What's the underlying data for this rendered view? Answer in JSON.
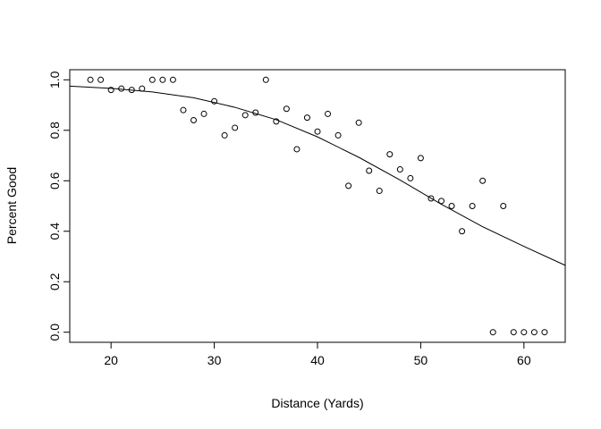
{
  "chart_data": {
    "type": "scatter",
    "title": "",
    "xlabel": "Distance (Yards)",
    "ylabel": "Percent Good",
    "xlim": [
      16,
      64
    ],
    "ylim": [
      -0.04,
      1.04
    ],
    "x_ticks": [
      "20",
      "30",
      "40",
      "50",
      "60"
    ],
    "x_tick_values": [
      20,
      30,
      40,
      50,
      60
    ],
    "y_ticks": [
      "0.0",
      "0.2",
      "0.4",
      "0.6",
      "0.8",
      "1.0"
    ],
    "y_tick_values": [
      0.0,
      0.2,
      0.4,
      0.6,
      0.8,
      1.0
    ],
    "grid": false,
    "points": [
      {
        "x": 18,
        "y": 1.0
      },
      {
        "x": 19,
        "y": 1.0
      },
      {
        "x": 20,
        "y": 0.96
      },
      {
        "x": 21,
        "y": 0.965
      },
      {
        "x": 22,
        "y": 0.96
      },
      {
        "x": 23,
        "y": 0.965
      },
      {
        "x": 24,
        "y": 1.0
      },
      {
        "x": 25,
        "y": 1.0
      },
      {
        "x": 26,
        "y": 1.0
      },
      {
        "x": 27,
        "y": 0.88
      },
      {
        "x": 28,
        "y": 0.84
      },
      {
        "x": 29,
        "y": 0.865
      },
      {
        "x": 30,
        "y": 0.915
      },
      {
        "x": 31,
        "y": 0.78
      },
      {
        "x": 32,
        "y": 0.81
      },
      {
        "x": 33,
        "y": 0.86
      },
      {
        "x": 34,
        "y": 0.87
      },
      {
        "x": 35,
        "y": 1.0
      },
      {
        "x": 36,
        "y": 0.835
      },
      {
        "x": 37,
        "y": 0.885
      },
      {
        "x": 38,
        "y": 0.725
      },
      {
        "x": 39,
        "y": 0.85
      },
      {
        "x": 40,
        "y": 0.795
      },
      {
        "x": 41,
        "y": 0.865
      },
      {
        "x": 42,
        "y": 0.78
      },
      {
        "x": 43,
        "y": 0.58
      },
      {
        "x": 44,
        "y": 0.83
      },
      {
        "x": 45,
        "y": 0.64
      },
      {
        "x": 46,
        "y": 0.56
      },
      {
        "x": 47,
        "y": 0.705
      },
      {
        "x": 48,
        "y": 0.645
      },
      {
        "x": 49,
        "y": 0.61
      },
      {
        "x": 50,
        "y": 0.69
      },
      {
        "x": 51,
        "y": 0.53
      },
      {
        "x": 52,
        "y": 0.52
      },
      {
        "x": 53,
        "y": 0.5
      },
      {
        "x": 54,
        "y": 0.4
      },
      {
        "x": 55,
        "y": 0.5
      },
      {
        "x": 56,
        "y": 0.6
      },
      {
        "x": 57,
        "y": 0.0
      },
      {
        "x": 58,
        "y": 0.5
      },
      {
        "x": 59,
        "y": 0.0
      },
      {
        "x": 60,
        "y": 0.0
      },
      {
        "x": 61,
        "y": 0.0
      },
      {
        "x": 62,
        "y": 0.0
      }
    ],
    "fit_curve": {
      "x": [
        16,
        20,
        24,
        28,
        32,
        36,
        40,
        44,
        48,
        52,
        56,
        60,
        64
      ],
      "y": [
        0.975,
        0.966,
        0.952,
        0.929,
        0.891,
        0.842,
        0.774,
        0.693,
        0.603,
        0.507,
        0.418,
        0.34,
        0.265
      ]
    }
  }
}
